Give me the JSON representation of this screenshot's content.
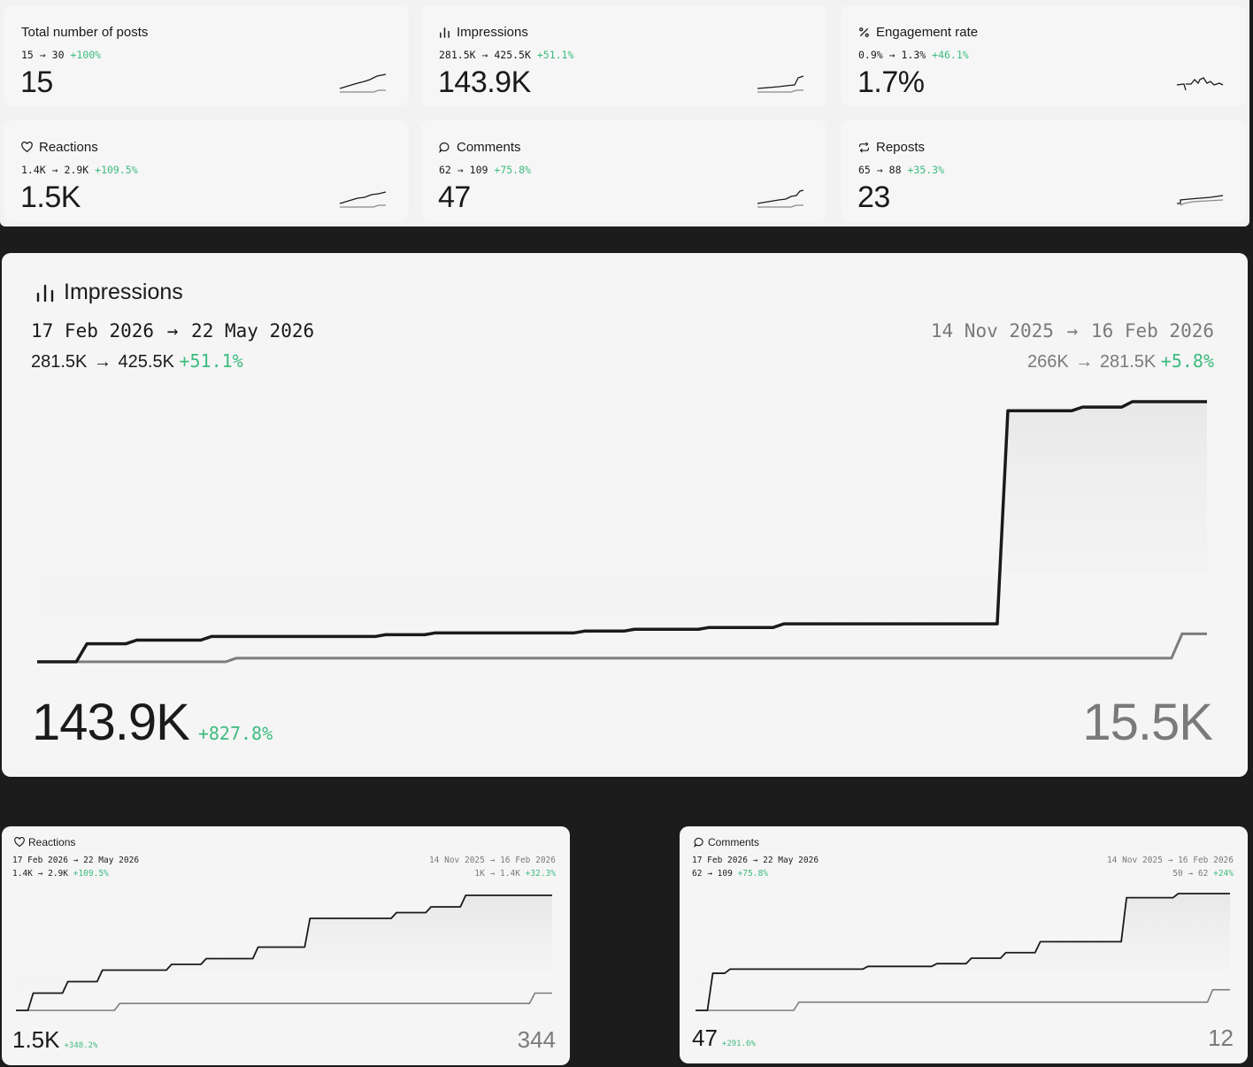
{
  "stats": [
    {
      "title": "Total number of posts",
      "icon": "none",
      "from": "15",
      "to": "30",
      "change": "+100%",
      "value": "15"
    },
    {
      "title": "Impressions",
      "icon": "bar-chart-icon",
      "from": "281.5K",
      "to": "425.5K",
      "change": "+51.1%",
      "value": "143.9K"
    },
    {
      "title": "Engagement rate",
      "icon": "percent-icon",
      "from": "0.9%",
      "to": "1.3%",
      "change": "+46.1%",
      "value": "1.7%"
    },
    {
      "title": "Reactions",
      "icon": "heart-icon",
      "from": "1.4K",
      "to": "2.9K",
      "change": "+109.5%",
      "value": "1.5K"
    },
    {
      "title": "Comments",
      "icon": "comment-icon",
      "from": "62",
      "to": "109",
      "change": "+75.8%",
      "value": "47"
    },
    {
      "title": "Reposts",
      "icon": "repost-icon",
      "from": "65",
      "to": "88",
      "change": "+35.3%",
      "value": "23"
    }
  ],
  "arrow": "→",
  "panels": {
    "impressions": {
      "title": "Impressions",
      "current": {
        "range_start": "17 Feb 2026",
        "range_end": "22 May 2026",
        "from": "281.5K",
        "to": "425.5K",
        "change": "+51.1%",
        "total": "143.9K",
        "total_change": "+827.8%"
      },
      "previous": {
        "range_start": "14 Nov 2025",
        "range_end": "16 Feb 2026",
        "from": "266K",
        "to": "281.5K",
        "change": "+5.8%",
        "total": "15.5K"
      }
    },
    "reactions": {
      "title": "Reactions",
      "current": {
        "range_start": "17 Feb 2026",
        "range_end": "22 May 2026",
        "from": "1.4K",
        "to": "2.9K",
        "change": "+109.5%",
        "total": "1.5K",
        "total_change": "+348.2%"
      },
      "previous": {
        "range_start": "14 Nov 2025",
        "range_end": "16 Feb 2026",
        "from": "1K",
        "to": "1.4K",
        "change": "+32.3%",
        "total": "344"
      }
    },
    "comments": {
      "title": "Comments",
      "current": {
        "range_start": "17 Feb 2026",
        "range_end": "22 May 2026",
        "from": "62",
        "to": "109",
        "change": "+75.8%",
        "total": "47",
        "total_change": "+291.6%"
      },
      "previous": {
        "range_start": "14 Nov 2025",
        "range_end": "16 Feb 2026",
        "from": "50",
        "to": "62",
        "change": "+24%",
        "total": "12"
      }
    }
  },
  "chart_data": [
    {
      "type": "line",
      "title": "Impressions",
      "x": [
        0,
        2,
        4,
        6,
        8,
        10,
        12,
        14,
        16,
        18,
        20,
        22,
        24,
        26,
        28,
        30,
        32,
        34,
        36,
        38,
        40,
        42,
        44,
        46,
        48,
        50,
        52,
        54,
        56,
        58,
        60,
        62,
        64,
        66,
        68,
        70,
        72,
        74,
        76,
        78,
        80,
        82,
        84,
        86,
        88,
        90,
        92,
        94
      ],
      "series": [
        {
          "name": "17 Feb 2026 → 22 May 2026",
          "values": [
            0,
            0,
            10,
            10,
            12,
            12,
            12,
            14,
            14,
            14,
            14,
            14,
            14,
            14,
            15,
            15,
            16,
            16,
            16,
            16,
            16,
            16,
            17,
            17,
            18,
            18,
            18,
            19,
            19,
            19,
            21,
            21,
            21,
            21,
            21,
            21,
            21,
            21,
            21,
            139,
            139,
            139,
            141,
            141,
            144,
            144,
            144,
            144
          ]
        },
        {
          "name": "14 Nov 2025 → 16 Feb 2026",
          "values": [
            0,
            0,
            0,
            0,
            0,
            0,
            0,
            0,
            2,
            2,
            2,
            2,
            2,
            2,
            2,
            2,
            2,
            2,
            2,
            2,
            2,
            2,
            2,
            2,
            2,
            2,
            2,
            2,
            2,
            2,
            2,
            2,
            2,
            2,
            2,
            2,
            2,
            2,
            2,
            2,
            2,
            2,
            2,
            2,
            2,
            2,
            15.5,
            15.5
          ]
        }
      ],
      "color_current": "#1a1a1a",
      "color_previous": "#7d7d7d"
    },
    {
      "type": "line",
      "title": "Reactions",
      "series": [
        {
          "name": "17 Feb 2026 → 22 May 2026",
          "values": [
            0,
            0.15,
            0.15,
            0.25,
            0.25,
            0.35,
            0.35,
            0.35,
            0.35,
            0.4,
            0.4,
            0.45,
            0.45,
            0.45,
            0.55,
            0.55,
            0.55,
            0.8,
            0.8,
            0.8,
            0.8,
            0.8,
            0.85,
            0.85,
            0.9,
            0.9,
            1.0,
            1.0,
            1.0,
            1.0,
            1.0,
            1.0
          ]
        },
        {
          "name": "14 Nov 2025 → 16 Feb 2026",
          "values": [
            0,
            0,
            0,
            0,
            0,
            0,
            0.06,
            0.06,
            0.06,
            0.06,
            0.06,
            0.06,
            0.06,
            0.06,
            0.06,
            0.06,
            0.06,
            0.06,
            0.06,
            0.06,
            0.06,
            0.06,
            0.06,
            0.06,
            0.06,
            0.06,
            0.06,
            0.06,
            0.06,
            0.06,
            0.15,
            0.15
          ]
        }
      ]
    },
    {
      "type": "line",
      "title": "Comments",
      "series": [
        {
          "name": "17 Feb 2026 → 22 May 2026",
          "values": [
            0,
            0.27,
            0.3,
            0.3,
            0.3,
            0.3,
            0.3,
            0.3,
            0.3,
            0.3,
            0.32,
            0.32,
            0.32,
            0.32,
            0.34,
            0.34,
            0.38,
            0.38,
            0.42,
            0.42,
            0.5,
            0.5,
            0.5,
            0.5,
            0.5,
            0.82,
            0.82,
            0.82,
            0.85,
            0.85,
            0.85,
            0.85
          ]
        },
        {
          "name": "14 Nov 2025 → 16 Feb 2026",
          "values": [
            0,
            0,
            0,
            0,
            0,
            0,
            0.06,
            0.06,
            0.06,
            0.06,
            0.06,
            0.06,
            0.06,
            0.06,
            0.06,
            0.06,
            0.06,
            0.06,
            0.06,
            0.06,
            0.06,
            0.06,
            0.06,
            0.06,
            0.06,
            0.06,
            0.06,
            0.06,
            0.06,
            0.06,
            0.15,
            0.15
          ]
        }
      ]
    }
  ]
}
